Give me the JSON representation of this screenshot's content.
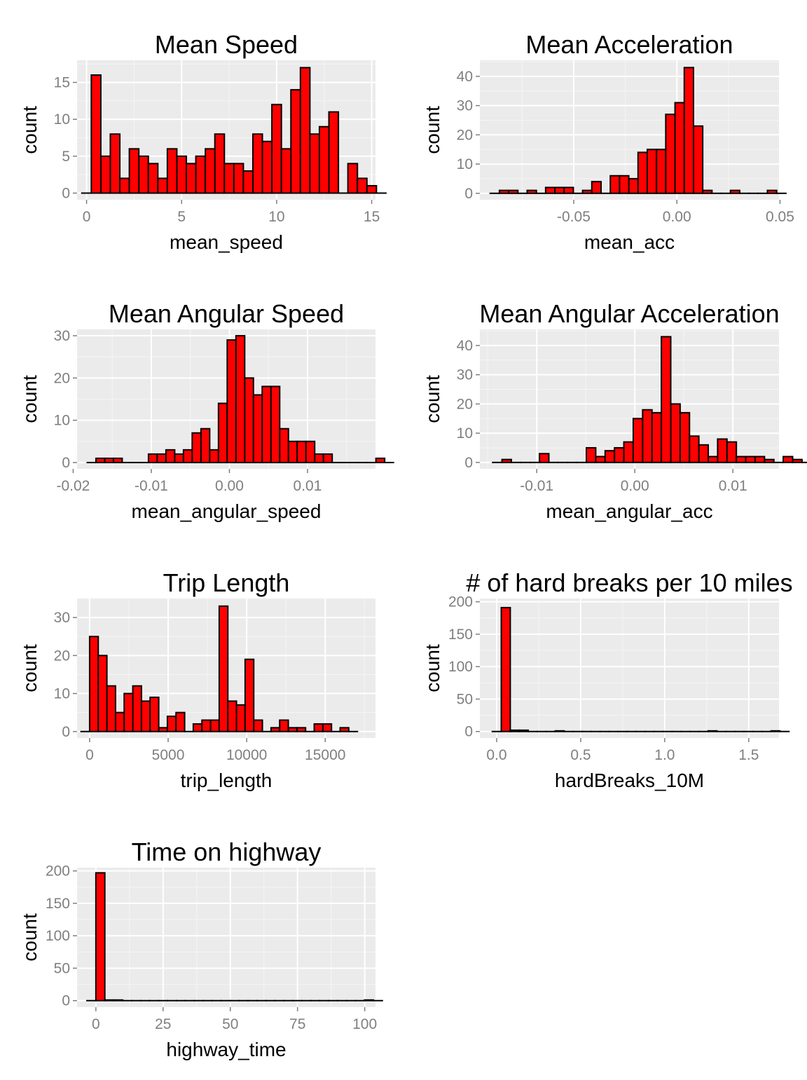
{
  "colors": {
    "panel_bg": "#ebebeb",
    "grid_major": "#ffffff",
    "grid_minor": "#f5f5f5",
    "bar_fill": "#ff0000",
    "bar_stroke": "#000000",
    "tick_text": "#7f7f7f",
    "axis_title": "#000000"
  },
  "chart_data": [
    {
      "id": "mean-speed",
      "type": "bar",
      "title": "Mean Speed",
      "xlabel": "mean_speed",
      "ylabel": "count",
      "xlim": [
        -0.5,
        15.2
      ],
      "ylim": [
        -0.9,
        18
      ],
      "xticks": [
        0,
        5,
        10,
        15
      ],
      "xtick_labels": [
        "0",
        "5",
        "10",
        "15"
      ],
      "yticks": [
        0,
        5,
        10,
        15
      ],
      "ytick_labels": [
        "0",
        "5",
        "10",
        "15"
      ],
      "bin_start": -0.25,
      "bin_width": 0.5,
      "values": [
        0,
        16,
        5,
        8,
        2,
        6,
        5,
        4,
        2,
        6,
        5,
        4,
        5,
        6,
        8,
        4,
        4,
        3,
        8,
        7,
        12,
        6,
        14,
        17,
        8,
        9,
        11,
        0,
        4,
        2,
        1,
        0
      ]
    },
    {
      "id": "mean-acceleration",
      "type": "bar",
      "title": "Mean Acceleration",
      "xlabel": "mean_acc",
      "ylabel": "count",
      "xlim": [
        -0.0955,
        0.0495
      ],
      "ylim": [
        -2.2,
        45.5
      ],
      "xticks": [
        -0.05,
        0,
        0.05
      ],
      "xtick_labels": [
        "-0.05",
        "0.00",
        "0.05"
      ],
      "yticks": [
        0,
        10,
        20,
        30,
        40
      ],
      "ytick_labels": [
        "0",
        "10",
        "20",
        "30",
        "40"
      ],
      "bin_start": -0.0905,
      "bin_width": 0.00448,
      "values": [
        0,
        1,
        1,
        0,
        1,
        0,
        2,
        2,
        2,
        0,
        1,
        4,
        0,
        6,
        6,
        5,
        14,
        15,
        15,
        27,
        31,
        43,
        23,
        1,
        0,
        0,
        1,
        0,
        0,
        0,
        1,
        0
      ]
    },
    {
      "id": "mean-angular-speed",
      "type": "bar",
      "title": "Mean Angular Speed",
      "xlabel": "mean_angular_speed",
      "ylabel": "count",
      "xlim": [
        -0.0195,
        0.0187
      ],
      "ylim": [
        -1.5,
        31.5
      ],
      "xticks": [
        -0.02,
        -0.01,
        0,
        0.01
      ],
      "xtick_labels": [
        "-0.02",
        "-0.01",
        "0.00",
        "0.01"
      ],
      "yticks": [
        0,
        10,
        20,
        30
      ],
      "ytick_labels": [
        "0",
        "10",
        "20",
        "30"
      ],
      "bin_start": -0.0182,
      "bin_width": 0.00112,
      "values": [
        0,
        1,
        1,
        1,
        0,
        0,
        0,
        2,
        2,
        3,
        2,
        3,
        7,
        8,
        3,
        14,
        29,
        30,
        20,
        16,
        18,
        18,
        8,
        5,
        5,
        5,
        2,
        2,
        0,
        0,
        0,
        0,
        0,
        1,
        0
      ]
    },
    {
      "id": "mean-angular-acceleration",
      "type": "bar",
      "title": "Mean Angular Acceleration",
      "xlabel": "mean_angular_acc",
      "ylabel": "count",
      "xlim": [
        -0.0158,
        0.0147
      ],
      "ylim": [
        -2.2,
        45.5
      ],
      "xticks": [
        -0.01,
        0,
        0.01
      ],
      "xtick_labels": [
        "-0.01",
        "0.00",
        "0.01"
      ],
      "yticks": [
        0,
        10,
        20,
        30,
        40
      ],
      "ytick_labels": [
        "0",
        "10",
        "20",
        "30",
        "40"
      ],
      "bin_start": -0.0145,
      "bin_width": 0.000956,
      "values": [
        0,
        1,
        0,
        0,
        0,
        3,
        0,
        0,
        0,
        0,
        5,
        2,
        4,
        5,
        7,
        15,
        18,
        17,
        43,
        20,
        17,
        9,
        6,
        2,
        8,
        7,
        2,
        2,
        2,
        1,
        0,
        2,
        1,
        0
      ]
    },
    {
      "id": "trip-length",
      "type": "bar",
      "title": "Trip Length",
      "xlabel": "trip_length",
      "ylabel": "count",
      "xlim": [
        -800,
        18200
      ],
      "ylim": [
        -1.7,
        35
      ],
      "xticks": [
        0,
        5000,
        10000,
        15000
      ],
      "xtick_labels": [
        "0",
        "5000",
        "10000",
        "15000"
      ],
      "yticks": [
        0,
        10,
        20,
        30
      ],
      "ytick_labels": [
        "0",
        "10",
        "20",
        "30"
      ],
      "bin_start": -550,
      "bin_width": 550,
      "values": [
        0,
        25,
        20,
        12,
        5,
        10,
        12,
        8,
        9,
        1,
        4,
        5,
        0,
        2,
        3,
        3,
        33,
        8,
        7,
        19,
        3,
        0,
        1,
        3,
        1,
        1,
        0,
        2,
        2,
        0,
        1,
        0
      ]
    },
    {
      "id": "hard-breaks",
      "type": "bar",
      "title": "# of hard breaks per 10 miles",
      "xlabel": "hardBreaks_10M",
      "ylabel": "count",
      "xlim": [
        -0.1,
        1.68
      ],
      "ylim": [
        -10,
        205
      ],
      "xticks": [
        0,
        0.5,
        1,
        1.5
      ],
      "xtick_labels": [
        "0.0",
        "0.5",
        "1.0",
        "1.5"
      ],
      "yticks": [
        0,
        50,
        100,
        150,
        200
      ],
      "ytick_labels": [
        "0",
        "50",
        "100",
        "150",
        "200"
      ],
      "bin_start": -0.026,
      "bin_width": 0.0535,
      "values": [
        0,
        191,
        2,
        2,
        0,
        0,
        0,
        1,
        0,
        0,
        0,
        0,
        0,
        0,
        0,
        0,
        0,
        0,
        0,
        0,
        0,
        0,
        0,
        0,
        1,
        0,
        0,
        0,
        0,
        0,
        0,
        1,
        0
      ]
    },
    {
      "id": "time-on-highway",
      "type": "bar",
      "title": "Time on highway",
      "xlabel": "highway_time",
      "ylabel": "count",
      "xlim": [
        -7,
        104
      ],
      "ylim": [
        -10,
        205
      ],
      "xticks": [
        0,
        25,
        50,
        75,
        100
      ],
      "xtick_labels": [
        "0",
        "25",
        "50",
        "75",
        "100"
      ],
      "yticks": [
        0,
        50,
        100,
        150,
        200
      ],
      "ytick_labels": [
        "0",
        "50",
        "100",
        "150",
        "200"
      ],
      "bin_start": -3.33,
      "bin_width": 3.33,
      "values": [
        0,
        197,
        1,
        1,
        0,
        0,
        0,
        0,
        0,
        0,
        0,
        0,
        0,
        0,
        0,
        0,
        0,
        0,
        0,
        0,
        0,
        0,
        0,
        0,
        0,
        0,
        0,
        0,
        0,
        0,
        0,
        1,
        0
      ]
    }
  ]
}
